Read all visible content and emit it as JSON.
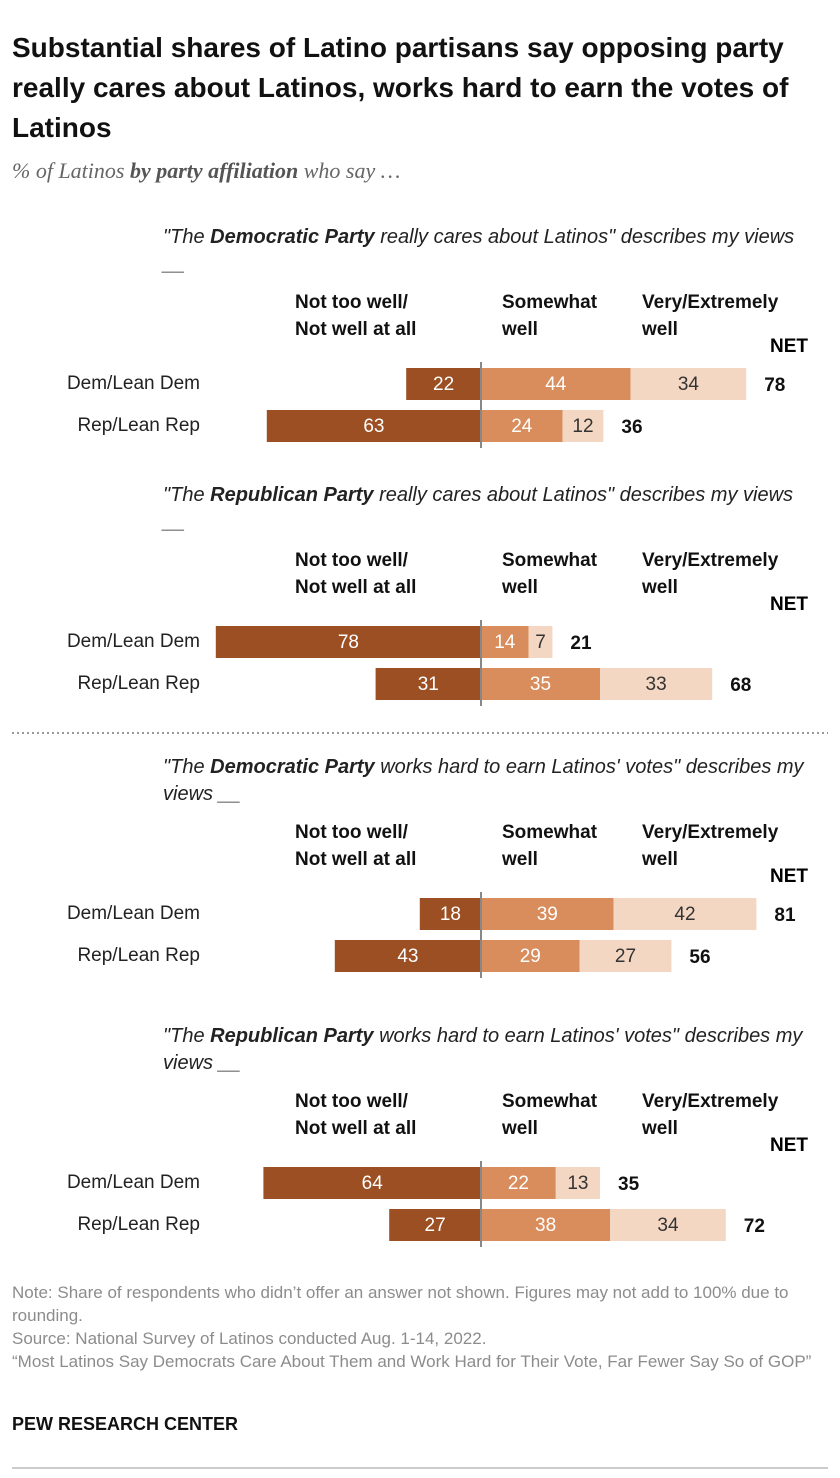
{
  "title": "Substantial shares of Latino partisans say opposing party really cares about Latinos, works hard to earn the votes of Latinos",
  "subtitle_parts": [
    "% of Latinos ",
    "by party affiliation",
    " who say …"
  ],
  "chart_data": [
    {
      "type": "diverging_bar",
      "title_parts": [
        "\"The ",
        "Democratic Party",
        " really cares about Latinos\" describes my views __"
      ],
      "categories": [
        "Dem/Lean Dem",
        "Rep/Lean Rep"
      ],
      "split": 1,
      "series": [
        {
          "name": "Not too well/\nNot well at all",
          "color": "#9b4f22",
          "label_color": "#ffffff",
          "values": [
            22,
            63
          ]
        },
        {
          "name": "Somewhat\nwell",
          "color": "#d98c5c",
          "label_color": "#ffffff",
          "values": [
            44,
            24
          ]
        },
        {
          "name": "Very/Extremely\nwell",
          "color": "#f4d7c3",
          "label_color": "#333333",
          "values": [
            34,
            12
          ]
        }
      ],
      "net_label": "NET",
      "net": [
        78,
        36
      ]
    },
    {
      "type": "diverging_bar",
      "title_parts": [
        "\"The ",
        "Republican Party",
        " really cares about Latinos\" describes my views __"
      ],
      "categories": [
        "Dem/Lean Dem",
        "Rep/Lean Rep"
      ],
      "split": 1,
      "series": [
        {
          "name": "Not too well/\nNot well at all",
          "color": "#9b4f22",
          "label_color": "#ffffff",
          "values": [
            78,
            31
          ]
        },
        {
          "name": "Somewhat\nwell",
          "color": "#d98c5c",
          "label_color": "#ffffff",
          "values": [
            14,
            35
          ]
        },
        {
          "name": "Very/Extremely\nwell",
          "color": "#f4d7c3",
          "label_color": "#333333",
          "values": [
            7,
            33
          ]
        }
      ],
      "net_label": "NET",
      "net": [
        21,
        68
      ]
    },
    {
      "type": "diverging_bar",
      "title_parts": [
        "\"The ",
        "Democratic Party",
        " works hard to earn Latinos' votes\" describes my views __"
      ],
      "categories": [
        "Dem/Lean Dem",
        "Rep/Lean Rep"
      ],
      "split": 1,
      "series": [
        {
          "name": "Not too well/\nNot well at all",
          "color": "#9b4f22",
          "label_color": "#ffffff",
          "values": [
            18,
            43
          ]
        },
        {
          "name": "Somewhat\nwell",
          "color": "#d98c5c",
          "label_color": "#ffffff",
          "values": [
            39,
            29
          ]
        },
        {
          "name": "Very/Extremely\nwell",
          "color": "#f4d7c3",
          "label_color": "#333333",
          "values": [
            42,
            27
          ]
        }
      ],
      "net_label": "NET",
      "net": [
        81,
        56
      ]
    },
    {
      "type": "diverging_bar",
      "title_parts": [
        "\"The ",
        "Republican Party",
        " works hard to earn Latinos' votes\" describes my views __"
      ],
      "categories": [
        "Dem/Lean Dem",
        "Rep/Lean Rep"
      ],
      "split": 1,
      "series": [
        {
          "name": "Not too well/\nNot well at all",
          "color": "#9b4f22",
          "label_color": "#ffffff",
          "values": [
            64,
            27
          ]
        },
        {
          "name": "Somewhat\nwell",
          "color": "#d98c5c",
          "label_color": "#ffffff",
          "values": [
            22,
            38
          ]
        },
        {
          "name": "Very/Extremely\nwell",
          "color": "#f4d7c3",
          "label_color": "#333333",
          "values": [
            13,
            34
          ]
        }
      ],
      "net_label": "NET",
      "net": [
        35,
        72
      ]
    }
  ],
  "notes": [
    "Note: Share of respondents who didn’t offer an answer not shown.  Figures may not add to 100% due to rounding.",
    "Source: National Survey of Latinos conducted Aug. 1-14, 2022.",
    "“Most Latinos Say Democrats Care About Them and Work Hard for Their Vote, Far Fewer Say So of GOP”"
  ],
  "footer": "PEW RESEARCH CENTER"
}
